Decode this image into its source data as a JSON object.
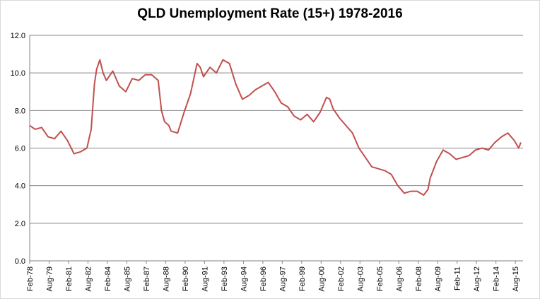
{
  "chart_data": {
    "type": "line",
    "title": "QLD Unemployment Rate (15+) 1978-2016",
    "xlabel": "",
    "ylabel": "",
    "ylim": [
      0,
      12
    ],
    "yticks": [
      "0.0",
      "2.0",
      "4.0",
      "6.0",
      "8.0",
      "10.0",
      "12.0"
    ],
    "xtick_labels": [
      "Feb-78",
      "Aug-79",
      "Feb-81",
      "Aug-82",
      "Feb-84",
      "Aug-85",
      "Feb-87",
      "Aug-88",
      "Feb-90",
      "Aug-91",
      "Feb-93",
      "Aug-94",
      "Feb-96",
      "Aug-97",
      "Feb-99",
      "Aug-00",
      "Feb-02",
      "Aug-03",
      "Feb-05",
      "Aug-06",
      "Feb-08",
      "Aug-09",
      "Feb-11",
      "Aug-12",
      "Feb-14",
      "Aug-15"
    ],
    "grid": true,
    "legend": "none",
    "line_color": "#c0504d",
    "x": [
      1978.08,
      1978.5,
      1979.0,
      1979.5,
      1980.0,
      1980.5,
      1981.0,
      1981.5,
      1982.0,
      1982.5,
      1982.83,
      1983.08,
      1983.25,
      1983.5,
      1983.75,
      1984.0,
      1984.5,
      1985.0,
      1985.5,
      1986.0,
      1986.5,
      1987.0,
      1987.5,
      1988.0,
      1988.25,
      1988.5,
      1988.83,
      1989.0,
      1989.5,
      1990.0,
      1990.5,
      1991.0,
      1991.25,
      1991.5,
      1992.0,
      1992.5,
      1993.0,
      1993.5,
      1994.0,
      1994.5,
      1995.0,
      1995.5,
      1996.0,
      1996.5,
      1997.0,
      1997.5,
      1998.0,
      1998.5,
      1999.0,
      1999.5,
      2000.0,
      2000.5,
      2001.0,
      2001.25,
      2001.5,
      2002.0,
      2002.5,
      2003.0,
      2003.5,
      2004.0,
      2004.5,
      2005.0,
      2005.5,
      2006.0,
      2006.5,
      2007.0,
      2007.5,
      2008.0,
      2008.5,
      2008.83,
      2009.0,
      2009.5,
      2010.0,
      2010.5,
      2011.0,
      2011.5,
      2012.0,
      2012.5,
      2013.0,
      2013.5,
      2014.0,
      2014.5,
      2015.0,
      2015.5,
      2015.83,
      2016.0
    ],
    "y": [
      7.2,
      7.0,
      7.1,
      6.6,
      6.5,
      6.9,
      6.4,
      5.7,
      5.8,
      6.0,
      7.0,
      9.4,
      10.2,
      10.7,
      10.0,
      9.6,
      10.1,
      9.3,
      9.0,
      9.7,
      9.6,
      9.9,
      9.9,
      9.6,
      8.0,
      7.4,
      7.2,
      6.9,
      6.8,
      7.9,
      8.9,
      10.5,
      10.3,
      9.8,
      10.3,
      10.0,
      10.7,
      10.5,
      9.4,
      8.6,
      8.8,
      9.1,
      9.3,
      9.5,
      9.0,
      8.4,
      8.2,
      7.7,
      7.5,
      7.8,
      7.4,
      7.9,
      8.7,
      8.6,
      8.1,
      7.6,
      7.2,
      6.8,
      6.0,
      5.5,
      5.0,
      4.9,
      4.8,
      4.6,
      4.0,
      3.6,
      3.7,
      3.7,
      3.5,
      3.8,
      4.4,
      5.3,
      5.9,
      5.7,
      5.4,
      5.5,
      5.6,
      5.9,
      6.0,
      5.9,
      6.3,
      6.6,
      6.8,
      6.4,
      6.0,
      6.3
    ]
  }
}
